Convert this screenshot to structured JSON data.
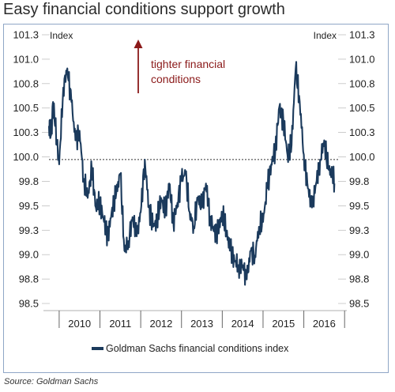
{
  "header": {
    "title": "Easy financial conditions support growth"
  },
  "footer": {
    "source": "Source: Goldman Sachs"
  },
  "colors": {
    "series": "#1b3a5c",
    "annotation": "#8b1a1a",
    "border": "#8fa6c6",
    "grid": "#b7b7b7"
  },
  "chart_data": {
    "type": "line",
    "title": "Easy financial conditions support growth",
    "ylabel_left": "Index",
    "ylabel_right": "Index",
    "ylim": [
      98.5,
      101.3
    ],
    "yticks": [
      "101.3",
      "101.0",
      "100.8",
      "100.5",
      "100.3",
      "100.0",
      "99.8",
      "99.5",
      "99.3",
      "99.0",
      "98.8",
      "98.5"
    ],
    "xticks": [
      "2010",
      "2011",
      "2012",
      "2013",
      "2014",
      "2015",
      "2016"
    ],
    "reference_line": 100.0,
    "annotation": {
      "line1": "tighter financial",
      "line2": "conditions"
    },
    "legend": {
      "placement": "bottom-center"
    },
    "series": [
      {
        "name": "Goldman Sachs financial conditions index",
        "x": [
          2009.75,
          2009.8,
          2009.85,
          2009.9,
          2010.0,
          2010.1,
          2010.2,
          2010.3,
          2010.4,
          2010.5,
          2010.6,
          2010.7,
          2010.8,
          2010.9,
          2011.0,
          2011.1,
          2011.2,
          2011.3,
          2011.4,
          2011.5,
          2011.6,
          2011.7,
          2011.8,
          2011.9,
          2012.0,
          2012.1,
          2012.2,
          2012.3,
          2012.4,
          2012.5,
          2012.6,
          2012.7,
          2012.8,
          2012.9,
          2013.0,
          2013.1,
          2013.2,
          2013.3,
          2013.4,
          2013.5,
          2013.6,
          2013.7,
          2013.8,
          2013.9,
          2014.0,
          2014.1,
          2014.2,
          2014.3,
          2014.4,
          2014.5,
          2014.6,
          2014.7,
          2014.8,
          2014.9,
          2015.0,
          2015.1,
          2015.2,
          2015.3,
          2015.4,
          2015.5,
          2015.6,
          2015.7,
          2015.8,
          2015.9,
          2016.0,
          2016.1,
          2016.2,
          2016.3,
          2016.4,
          2016.5,
          2016.6,
          2016.7,
          2016.75
        ],
        "y": [
          100.35,
          100.25,
          100.6,
          100.35,
          99.95,
          100.75,
          100.95,
          100.6,
          100.2,
          100.3,
          99.8,
          99.6,
          99.9,
          99.5,
          99.55,
          99.35,
          99.2,
          99.5,
          99.65,
          99.85,
          99.05,
          99.15,
          99.4,
          99.2,
          99.45,
          100.0,
          99.5,
          99.3,
          99.35,
          99.6,
          99.45,
          99.75,
          99.35,
          99.55,
          99.8,
          99.85,
          99.45,
          99.3,
          99.6,
          99.5,
          99.75,
          99.4,
          99.25,
          99.25,
          99.45,
          99.25,
          99.05,
          98.95,
          98.9,
          98.9,
          98.75,
          99.05,
          99.0,
          99.3,
          99.35,
          99.7,
          99.95,
          100.1,
          100.55,
          100.4,
          100.05,
          100.15,
          100.95,
          100.6,
          100.05,
          99.7,
          99.5,
          99.75,
          100.0,
          100.2,
          99.9,
          99.85,
          99.75
        ]
      }
    ]
  }
}
